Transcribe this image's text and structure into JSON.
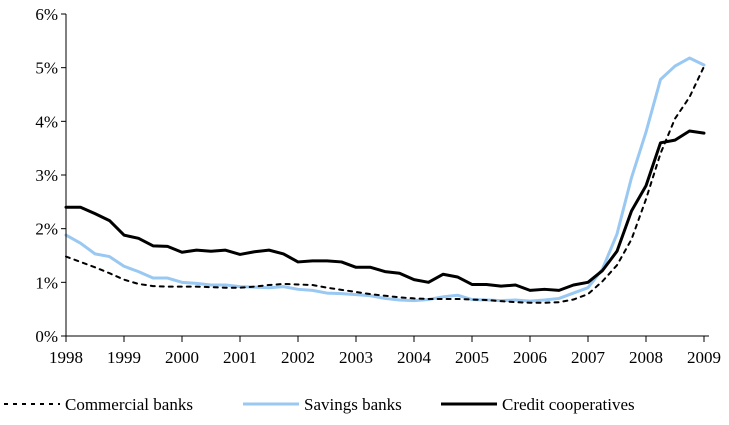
{
  "chart_data": {
    "type": "line",
    "title": "",
    "xlabel": "",
    "ylabel": "",
    "x_ticks": [
      "1998",
      "1999",
      "2000",
      "2001",
      "2002",
      "2003",
      "2004",
      "2005",
      "2006",
      "2007",
      "2008",
      "2009"
    ],
    "y_ticks": [
      "0%",
      "1%",
      "2%",
      "3%",
      "4%",
      "5%",
      "6%"
    ],
    "xlim": [
      1998.0,
      2009.0
    ],
    "ylim": [
      0,
      6
    ],
    "grid": false,
    "legend": "bottom",
    "x": [
      1998.0,
      1998.25,
      1998.5,
      1998.75,
      1999.0,
      1999.25,
      1999.5,
      1999.75,
      2000.0,
      2000.25,
      2000.5,
      2000.75,
      2001.0,
      2001.25,
      2001.5,
      2001.75,
      2002.0,
      2002.25,
      2002.5,
      2002.75,
      2003.0,
      2003.25,
      2003.5,
      2003.75,
      2004.0,
      2004.25,
      2004.5,
      2004.75,
      2005.0,
      2005.25,
      2005.5,
      2005.75,
      2006.0,
      2006.25,
      2006.5,
      2006.75,
      2007.0,
      2007.25,
      2007.5,
      2007.75,
      2008.0,
      2008.25,
      2008.5,
      2008.75,
      2009.0
    ],
    "series": [
      {
        "name": "Commercial banks",
        "color": "#000000",
        "style": "dotted",
        "values": [
          1.48,
          1.38,
          1.28,
          1.17,
          1.05,
          0.97,
          0.93,
          0.92,
          0.92,
          0.92,
          0.91,
          0.9,
          0.9,
          0.92,
          0.95,
          0.97,
          0.96,
          0.95,
          0.9,
          0.86,
          0.82,
          0.78,
          0.75,
          0.72,
          0.7,
          0.69,
          0.69,
          0.69,
          0.68,
          0.67,
          0.65,
          0.63,
          0.62,
          0.62,
          0.63,
          0.68,
          0.78,
          1.02,
          1.32,
          1.8,
          2.55,
          3.4,
          4.05,
          4.45,
          5.02
        ]
      },
      {
        "name": "Savings banks",
        "color": "#99c8f2",
        "style": "solid",
        "values": [
          1.88,
          1.73,
          1.53,
          1.48,
          1.3,
          1.2,
          1.08,
          1.08,
          1.0,
          0.98,
          0.95,
          0.95,
          0.92,
          0.91,
          0.9,
          0.92,
          0.87,
          0.85,
          0.8,
          0.79,
          0.77,
          0.75,
          0.7,
          0.67,
          0.66,
          0.68,
          0.73,
          0.76,
          0.68,
          0.67,
          0.66,
          0.67,
          0.65,
          0.67,
          0.7,
          0.8,
          0.9,
          1.25,
          1.9,
          2.95,
          3.8,
          4.78,
          5.03,
          5.18,
          5.05
        ]
      },
      {
        "name": "Credit cooperatives",
        "color": "#000000",
        "style": "solid",
        "values": [
          2.4,
          2.4,
          2.28,
          2.15,
          1.88,
          1.82,
          1.68,
          1.67,
          1.56,
          1.6,
          1.58,
          1.6,
          1.52,
          1.57,
          1.6,
          1.53,
          1.38,
          1.4,
          1.4,
          1.38,
          1.28,
          1.28,
          1.2,
          1.17,
          1.05,
          1.0,
          1.15,
          1.1,
          0.96,
          0.96,
          0.93,
          0.95,
          0.85,
          0.87,
          0.85,
          0.95,
          1.0,
          1.22,
          1.58,
          2.33,
          2.8,
          3.6,
          3.65,
          3.82,
          3.78
        ]
      }
    ]
  }
}
